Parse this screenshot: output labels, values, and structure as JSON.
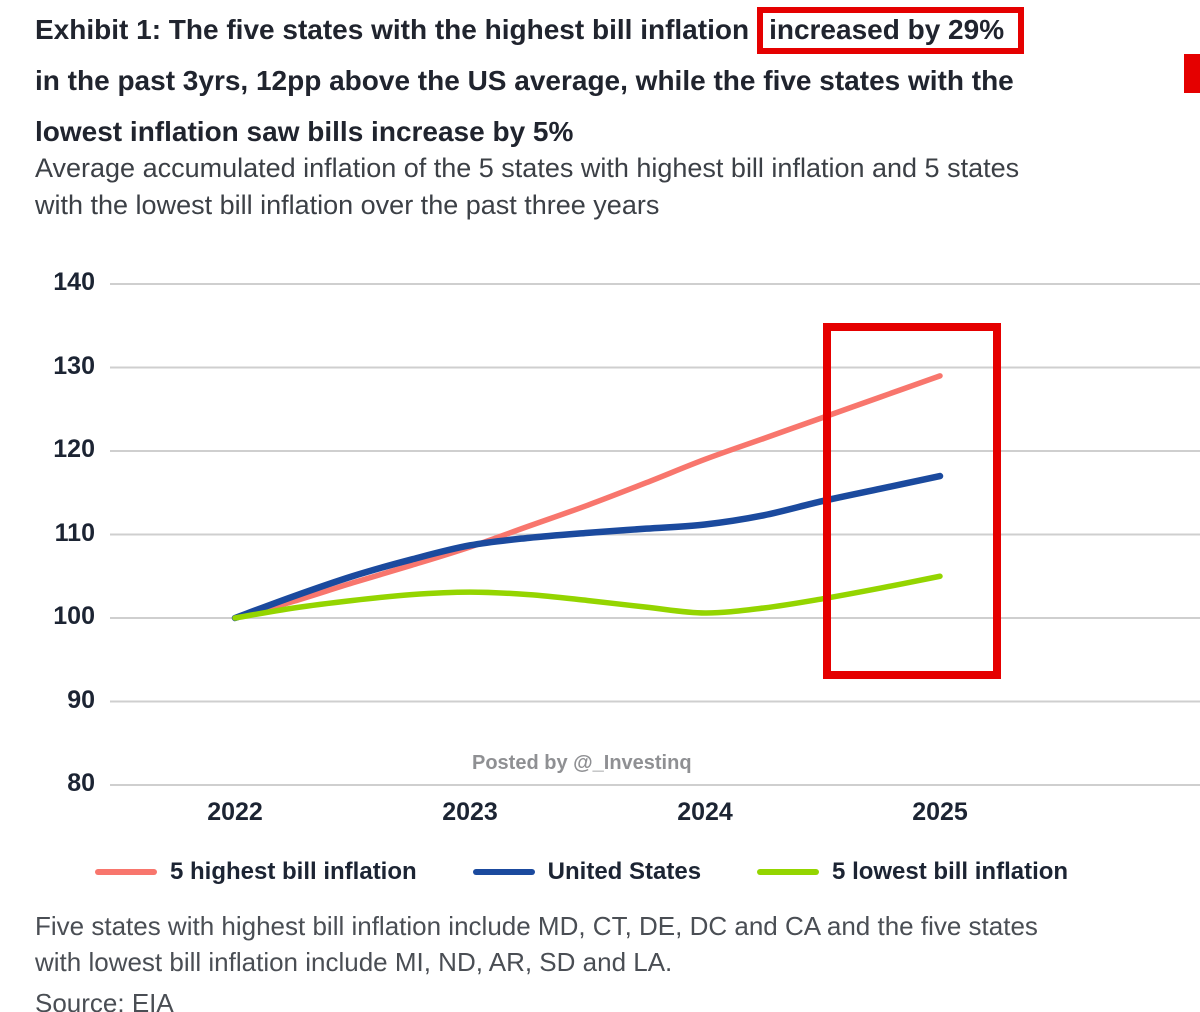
{
  "page": {
    "title": {
      "line1_text": "Exhibit 1: The five states with the highest bill inflation",
      "line1_highlight": "increased by 29%",
      "line2": "in the past 3yrs, 12pp above the US average, while the five states with the",
      "line3": "lowest inflation saw bills increase by 5%"
    },
    "subtitle_line1": "Average accumulated inflation of the 5 states with highest bill inflation and 5 states",
    "subtitle_line2": "with the lowest bill inflation over the past three years",
    "watermark": "Posted by @_Investinq",
    "footnote_line1": "Five states with highest bill inflation include MD, CT, DE, DC and CA and the five states",
    "footnote_line2": "with lowest bill inflation include MI, ND, AR, SD and LA.",
    "source": "Source: EIA"
  },
  "colors": {
    "annotation_red": "#e50000",
    "grid_line": "#cfcfcf",
    "heading_text": "#20242e",
    "subtitle_text": "#3c4046",
    "footnote_text": "#4a4e54",
    "axis_text": "#1c2433",
    "watermark_text": "#8f9093"
  },
  "chart_data": {
    "type": "line",
    "xlabel": "",
    "ylabel": "",
    "xlim": [
      2022,
      2025
    ],
    "ylim": [
      80,
      140
    ],
    "xticks": [
      2022,
      2023,
      2024,
      2025
    ],
    "yticks": [
      140,
      130,
      120,
      110,
      100,
      90,
      80
    ],
    "grid": "horizontal",
    "legend_position": "bottom",
    "x": [
      2022,
      2022.25,
      2022.5,
      2022.75,
      2023,
      2023.25,
      2023.5,
      2023.75,
      2024,
      2024.25,
      2024.5,
      2024.75,
      2025
    ],
    "series": [
      {
        "name": "5 highest bill inflation",
        "color": "#f8766d",
        "stroke_width": 5.5,
        "values": [
          100,
          102,
          104.2,
          106.3,
          108.5,
          111,
          113.5,
          116.2,
          119,
          121.5,
          124,
          126.5,
          129
        ]
      },
      {
        "name": "United States",
        "color": "#1b4a9e",
        "stroke_width": 6.5,
        "values": [
          100,
          102.6,
          105,
          107,
          108.7,
          109.6,
          110.2,
          110.7,
          111.2,
          112.3,
          114,
          115.5,
          117
        ]
      },
      {
        "name": "5 lowest bill inflation",
        "color": "#94d500",
        "stroke_width": 5.5,
        "values": [
          100,
          101.2,
          102.1,
          102.8,
          103.1,
          102.8,
          102.1,
          101.3,
          100.6,
          101.2,
          102.3,
          103.6,
          105
        ]
      }
    ],
    "annotations": [
      {
        "type": "box",
        "x_range": [
          2024.5,
          2025.19
        ],
        "y_range": [
          94.6,
          135.3
        ],
        "color": "#e50000",
        "stroke_width": 8
      }
    ]
  }
}
